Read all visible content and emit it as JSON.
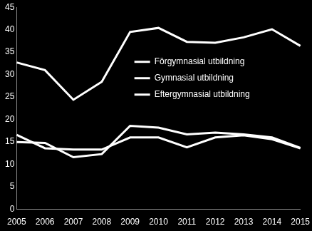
{
  "chart_data": {
    "type": "line",
    "categories": [
      "2005",
      "2006",
      "2007",
      "2008",
      "2009",
      "2010",
      "2011",
      "2012",
      "2013",
      "2014",
      "2015"
    ],
    "series": [
      {
        "name": "Förgymnasial utbildning",
        "color": "#ffffff",
        "values": [
          32.7,
          31.0,
          24.4,
          28.4,
          39.5,
          40.4,
          37.3,
          37.1,
          38.3,
          40.1,
          36.4
        ]
      },
      {
        "name": "Gymnasial utbildning",
        "color": "#ffffff",
        "values": [
          15.0,
          14.8,
          11.6,
          12.3,
          18.6,
          18.2,
          16.7,
          17.1,
          16.7,
          16.0,
          13.7
        ]
      },
      {
        "name": "Eftergymnasial utbildning",
        "color": "#ffffff",
        "values": [
          16.6,
          13.6,
          13.3,
          13.3,
          16.0,
          16.0,
          13.8,
          16.0,
          16.5,
          15.6,
          13.6
        ]
      }
    ],
    "ylim": [
      0,
      45
    ],
    "yticks": [
      0,
      5,
      10,
      15,
      20,
      25,
      30,
      35,
      40,
      45
    ],
    "grid": false,
    "legend": "upper right"
  }
}
